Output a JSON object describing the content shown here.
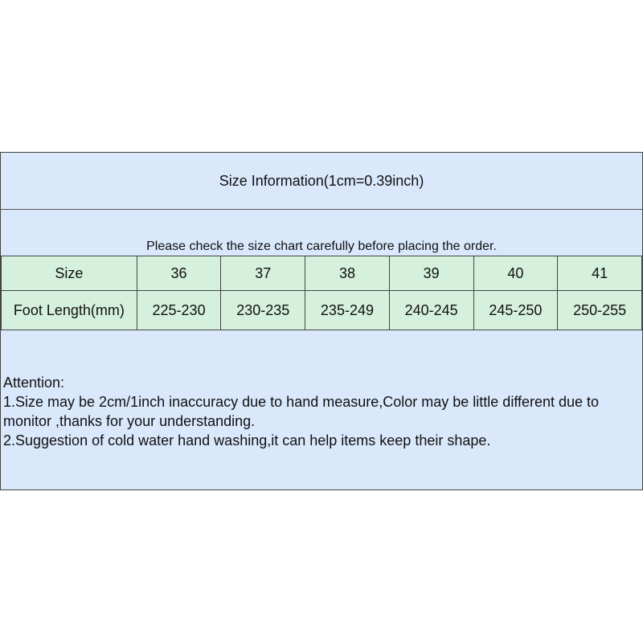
{
  "title": "Size Information(1cm=0.39inch)",
  "note": "Please check the size chart carefully before placing the order.",
  "table": {
    "rows": [
      [
        "Size",
        "36",
        "37",
        "38",
        "39",
        "40",
        "41"
      ],
      [
        "Foot Length(mm)",
        "225-230",
        "230-235",
        "235-249",
        "240-245",
        "245-250",
        "250-255"
      ]
    ]
  },
  "attention": {
    "heading": "Attention:",
    "lines": [
      "1.Size may be 2cm/1inch inaccuracy due to hand measure,Color may be little different due to monitor ,thanks for your understanding.",
      "2.Suggestion of cold water hand washing,it can help items keep their shape."
    ]
  },
  "colors": {
    "header_bg": "#dae8fc",
    "table_bg": "#d5f0dc"
  }
}
